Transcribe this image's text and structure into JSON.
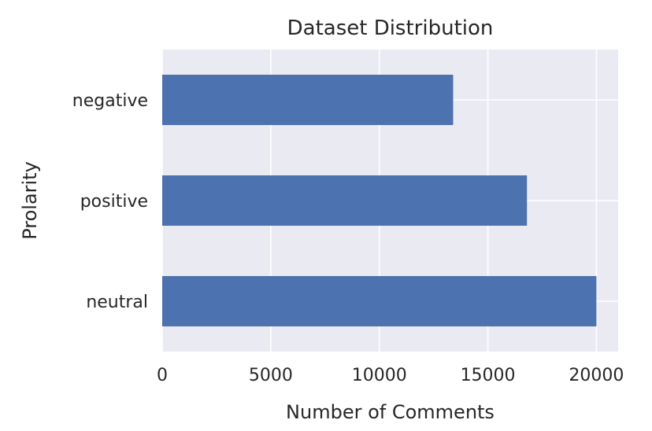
{
  "chart_data": {
    "type": "bar",
    "orientation": "horizontal",
    "title": "Dataset Distribution",
    "xlabel": "Number of Comments",
    "ylabel": "Prolarity",
    "categories": [
      "negative",
      "positive",
      "neutral"
    ],
    "values": [
      13400,
      16800,
      20000
    ],
    "xlim": [
      0,
      21000
    ],
    "xticks": [
      "0",
      "5000",
      "10000",
      "15000",
      "20000"
    ],
    "xtick_values": [
      0,
      5000,
      10000,
      15000,
      20000
    ],
    "grid": true,
    "bar_color": "#4C72B0",
    "background_color": "#EAEAF2"
  }
}
